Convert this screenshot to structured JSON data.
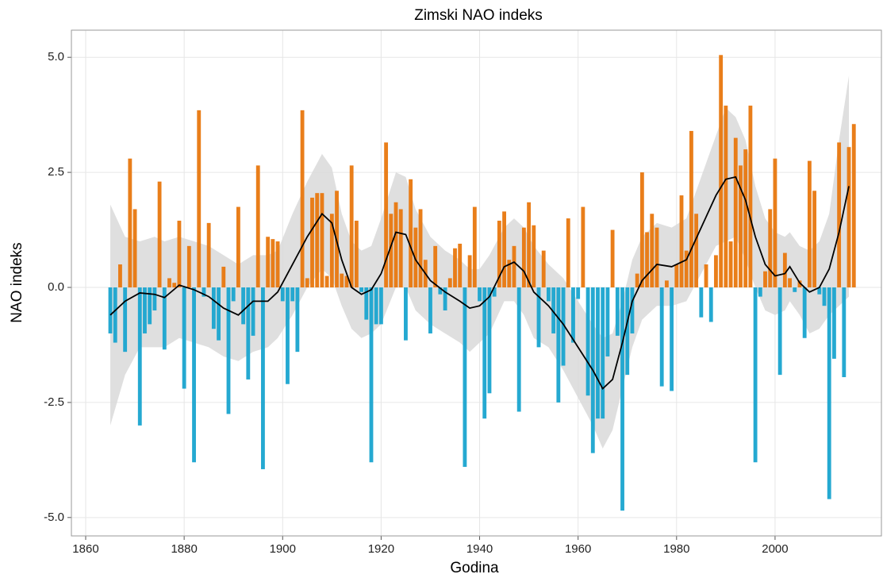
{
  "chart_data": {
    "type": "bar",
    "title": "Zimski NAO indeks",
    "x_label": "Godina",
    "y_label": "NAO indeks",
    "x": [
      1865,
      1866,
      1867,
      1868,
      1869,
      1870,
      1871,
      1872,
      1873,
      1874,
      1875,
      1876,
      1877,
      1878,
      1879,
      1880,
      1881,
      1882,
      1883,
      1884,
      1885,
      1886,
      1887,
      1888,
      1889,
      1890,
      1891,
      1892,
      1893,
      1894,
      1895,
      1896,
      1897,
      1898,
      1899,
      1900,
      1901,
      1902,
      1903,
      1904,
      1905,
      1906,
      1907,
      1908,
      1909,
      1910,
      1911,
      1912,
      1913,
      1914,
      1915,
      1916,
      1917,
      1918,
      1919,
      1920,
      1921,
      1922,
      1923,
      1924,
      1925,
      1926,
      1927,
      1928,
      1929,
      1930,
      1931,
      1932,
      1933,
      1934,
      1935,
      1936,
      1937,
      1938,
      1939,
      1940,
      1941,
      1942,
      1943,
      1944,
      1945,
      1946,
      1947,
      1948,
      1949,
      1950,
      1951,
      1952,
      1953,
      1954,
      1955,
      1956,
      1957,
      1958,
      1959,
      1960,
      1961,
      1962,
      1963,
      1964,
      1965,
      1966,
      1967,
      1968,
      1969,
      1970,
      1971,
      1972,
      1973,
      1974,
      1975,
      1976,
      1977,
      1978,
      1979,
      1980,
      1981,
      1982,
      1983,
      1984,
      1985,
      1986,
      1987,
      1988,
      1989,
      1990,
      1991,
      1992,
      1993,
      1994,
      1995,
      1996,
      1997,
      1998,
      1999,
      2000,
      2001,
      2002,
      2003,
      2004,
      2005,
      2006,
      2007,
      2008,
      2009,
      2010,
      2011,
      2012,
      2013,
      2014,
      2015,
      2016
    ],
    "values": [
      -1.0,
      -1.2,
      0.5,
      -1.4,
      2.8,
      1.7,
      -3.0,
      -1.0,
      -0.8,
      -0.5,
      2.3,
      -1.35,
      0.2,
      0.1,
      1.45,
      -2.2,
      0.9,
      -3.8,
      3.85,
      -0.2,
      1.4,
      -0.9,
      -1.15,
      0.45,
      -2.75,
      -0.3,
      1.75,
      -0.8,
      -2.0,
      -1.05,
      2.65,
      -3.95,
      1.1,
      1.05,
      1.0,
      -0.3,
      -2.1,
      -0.3,
      -1.4,
      3.85,
      0.2,
      1.95,
      2.05,
      2.05,
      0.25,
      1.6,
      2.1,
      0.3,
      0.25,
      2.65,
      1.45,
      -0.1,
      -0.7,
      -3.8,
      -0.8,
      -0.8,
      3.15,
      1.6,
      1.85,
      1.7,
      -1.15,
      2.35,
      1.3,
      1.7,
      0.6,
      -1.0,
      0.9,
      -0.15,
      -0.5,
      0.2,
      0.85,
      0.95,
      -3.9,
      0.7,
      1.75,
      -0.3,
      -2.85,
      -2.3,
      -0.2,
      1.45,
      1.65,
      0.6,
      0.9,
      -2.7,
      1.3,
      1.85,
      1.35,
      -1.3,
      0.8,
      -0.3,
      -1.0,
      -2.5,
      -1.7,
      1.5,
      -1.2,
      -0.25,
      1.75,
      -2.35,
      -3.6,
      -2.85,
      -2.85,
      -1.5,
      1.25,
      -1.05,
      -4.85,
      -1.9,
      -1.0,
      0.3,
      2.5,
      1.2,
      1.6,
      1.3,
      -2.15,
      0.15,
      -2.25,
      0.5,
      2.0,
      0.8,
      3.4,
      1.6,
      -0.65,
      0.5,
      -0.75,
      0.7,
      5.05,
      3.95,
      1.0,
      3.25,
      2.65,
      3.0,
      3.95,
      -3.8,
      -0.2,
      0.35,
      1.7,
      2.8,
      -1.9,
      0.75,
      0.2,
      -0.1,
      0.15,
      -1.1,
      2.75,
      2.1,
      -0.15,
      -0.4,
      -4.6,
      -1.55,
      3.15,
      -1.95,
      3.05,
      3.55
    ],
    "positive_color": "#e8770e",
    "negative_color": "#19a4cf",
    "smooth": {
      "color": "#000000",
      "band_color": "#d9d9d9",
      "x": [
        1865,
        1868,
        1871,
        1874,
        1876,
        1879,
        1882,
        1885,
        1888,
        1891,
        1894,
        1897,
        1899,
        1902,
        1905,
        1908,
        1910,
        1912,
        1914,
        1916,
        1918,
        1920,
        1923,
        1925,
        1927,
        1930,
        1933,
        1936,
        1938,
        1940,
        1942,
        1945,
        1947,
        1949,
        1951,
        1954,
        1957,
        1960,
        1963,
        1965,
        1967,
        1969,
        1971,
        1973,
        1976,
        1979,
        1982,
        1985,
        1988,
        1990,
        1992,
        1994,
        1996,
        1998,
        2000,
        2002,
        2003,
        2005,
        2007,
        2009,
        2011,
        2013,
        2015
      ],
      "values": [
        -0.6,
        -0.3,
        -0.12,
        -0.15,
        -0.22,
        0.05,
        -0.05,
        -0.2,
        -0.45,
        -0.6,
        -0.3,
        -0.3,
        -0.1,
        0.5,
        1.1,
        1.6,
        1.4,
        0.6,
        0.0,
        -0.15,
        -0.05,
        0.3,
        1.2,
        1.15,
        0.6,
        0.15,
        -0.1,
        -0.3,
        -0.45,
        -0.4,
        -0.2,
        0.45,
        0.55,
        0.35,
        -0.1,
        -0.4,
        -0.8,
        -1.3,
        -1.8,
        -2.2,
        -2.0,
        -1.2,
        -0.3,
        0.15,
        0.5,
        0.45,
        0.6,
        1.3,
        2.0,
        2.35,
        2.4,
        1.9,
        1.1,
        0.5,
        0.25,
        0.3,
        0.45,
        0.1,
        -0.1,
        0.0,
        0.4,
        1.2,
        2.2
      ],
      "upper": [
        1.8,
        1.1,
        1.0,
        1.1,
        1.0,
        1.1,
        1.0,
        0.9,
        0.7,
        0.5,
        0.7,
        0.7,
        0.8,
        1.6,
        2.3,
        2.9,
        2.6,
        1.6,
        1.0,
        0.8,
        0.9,
        1.5,
        2.5,
        2.4,
        1.7,
        1.1,
        0.8,
        0.6,
        0.4,
        0.4,
        0.7,
        1.3,
        1.5,
        1.3,
        0.9,
        0.5,
        0.2,
        -0.3,
        -0.8,
        -1.1,
        -1.0,
        -0.3,
        0.6,
        1.1,
        1.4,
        1.3,
        1.5,
        2.4,
        3.3,
        3.9,
        3.7,
        3.2,
        2.2,
        1.5,
        1.2,
        1.1,
        1.2,
        0.9,
        0.8,
        1.0,
        1.6,
        3.2,
        4.6
      ],
      "lower": [
        -3.0,
        -1.9,
        -1.3,
        -1.3,
        -1.3,
        -1.1,
        -1.2,
        -1.3,
        -1.5,
        -1.6,
        -1.4,
        -1.3,
        -1.1,
        -0.6,
        0.0,
        0.4,
        0.2,
        -0.4,
        -0.9,
        -1.1,
        -1.0,
        -0.8,
        0.0,
        0.0,
        -0.5,
        -0.8,
        -1.0,
        -1.2,
        -1.4,
        -1.2,
        -1.0,
        -0.3,
        -0.3,
        -0.6,
        -1.1,
        -1.3,
        -1.8,
        -2.4,
        -3.0,
        -3.5,
        -3.1,
        -2.2,
        -1.3,
        -0.7,
        -0.4,
        -0.4,
        -0.3,
        0.3,
        0.9,
        1.0,
        1.1,
        0.6,
        0.0,
        -0.5,
        -0.6,
        -0.5,
        -0.3,
        -0.6,
        -1.0,
        -0.9,
        -0.6,
        -0.4,
        -0.2
      ]
    },
    "xlim": [
      1857.1,
      2021.6
    ],
    "ylim": [
      -5.4,
      5.59
    ],
    "xticks": [
      1860,
      1880,
      1900,
      1920,
      1940,
      1960,
      1980,
      2000
    ],
    "yticks": [
      {
        "value": 5,
        "label": "5.0"
      },
      {
        "value": 2.5,
        "label": "2.5"
      },
      {
        "value": 0,
        "label": "0.0"
      },
      {
        "value": -2.5,
        "label": "-2.5"
      },
      {
        "value": -5,
        "label": "-5.0"
      }
    ],
    "grid": true
  }
}
